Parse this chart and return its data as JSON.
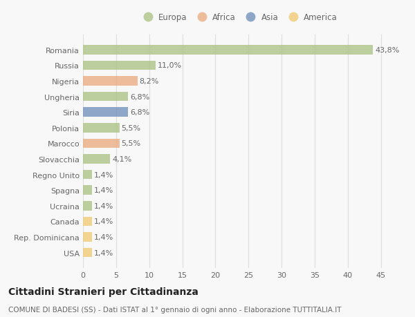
{
  "countries": [
    "Romania",
    "Russia",
    "Nigeria",
    "Ungheria",
    "Siria",
    "Polonia",
    "Marocco",
    "Slovacchia",
    "Regno Unito",
    "Spagna",
    "Ucraina",
    "Canada",
    "Rep. Dominicana",
    "USA"
  ],
  "values": [
    43.8,
    11.0,
    8.2,
    6.8,
    6.8,
    5.5,
    5.5,
    4.1,
    1.4,
    1.4,
    1.4,
    1.4,
    1.4,
    1.4
  ],
  "labels": [
    "43,8%",
    "11,0%",
    "8,2%",
    "6,8%",
    "6,8%",
    "5,5%",
    "5,5%",
    "4,1%",
    "1,4%",
    "1,4%",
    "1,4%",
    "1,4%",
    "1,4%",
    "1,4%"
  ],
  "continents": [
    "Europa",
    "Europa",
    "Africa",
    "Europa",
    "Asia",
    "Europa",
    "Africa",
    "Europa",
    "Europa",
    "Europa",
    "Europa",
    "America",
    "America",
    "America"
  ],
  "continent_colors": {
    "Europa": "#a8c080",
    "Africa": "#e8a87c",
    "Asia": "#6b8cba",
    "America": "#f0c96e"
  },
  "legend_items": [
    "Europa",
    "Africa",
    "Asia",
    "America"
  ],
  "title": "Cittadini Stranieri per Cittadinanza",
  "subtitle": "COMUNE DI BADESI (SS) - Dati ISTAT al 1° gennaio di ogni anno - Elaborazione TUTTITALIA.IT",
  "xlim": [
    0,
    47
  ],
  "xticks": [
    0,
    5,
    10,
    15,
    20,
    25,
    30,
    35,
    40,
    45
  ],
  "background_color": "#f8f8f8",
  "grid_color": "#dddddd",
  "bar_height": 0.6,
  "label_fontsize": 8,
  "title_fontsize": 10,
  "subtitle_fontsize": 7.5,
  "ytick_fontsize": 8,
  "xtick_fontsize": 8,
  "text_color": "#666666",
  "title_color": "#222222"
}
